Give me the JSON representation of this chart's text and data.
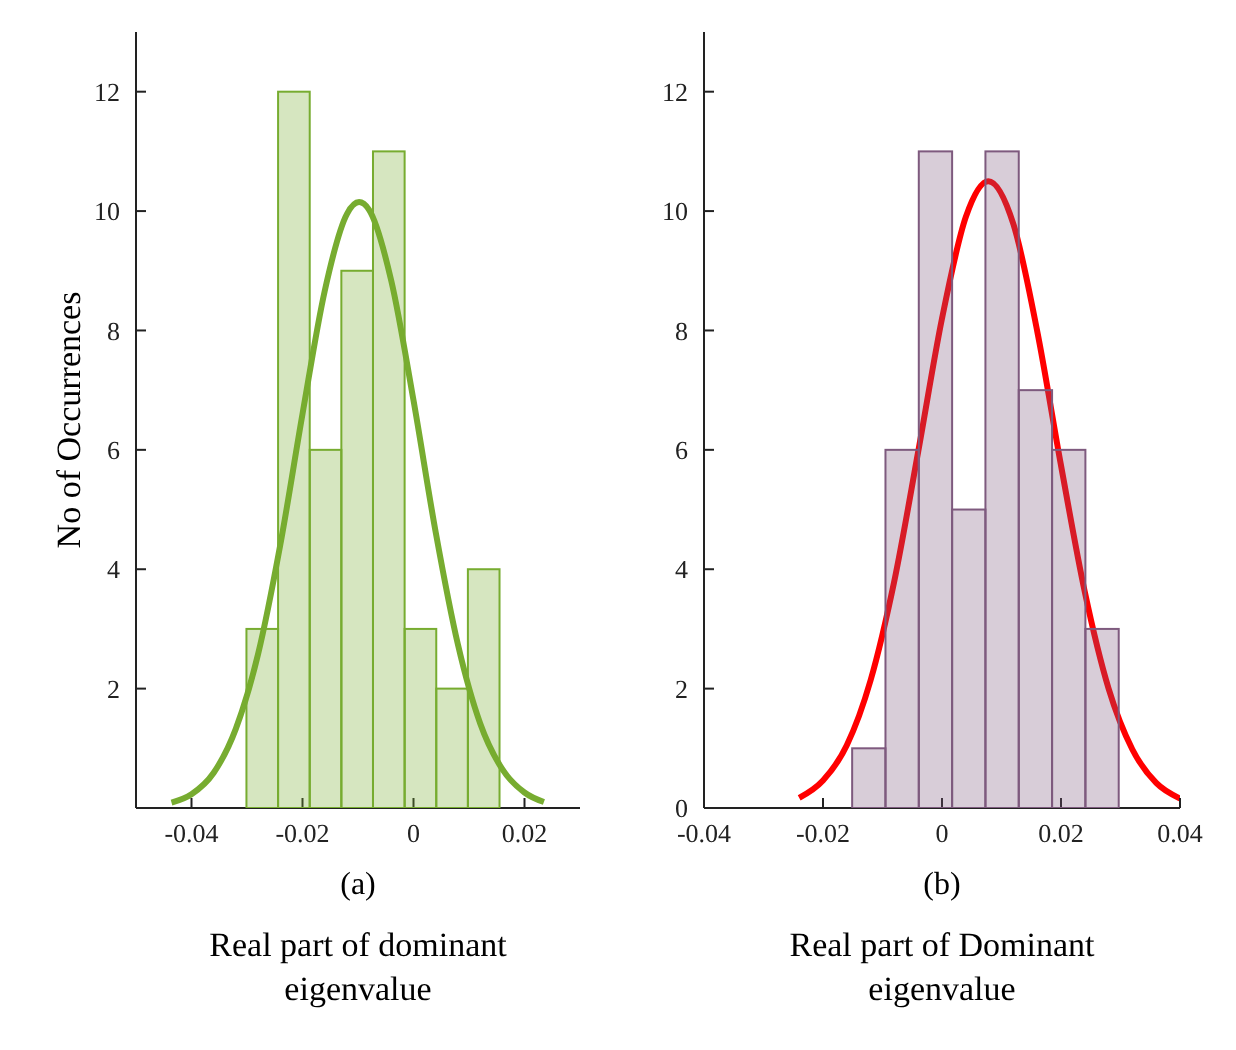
{
  "chart_data": [
    {
      "type": "histogram",
      "title": "(a)",
      "xlabel": "Real part of dominant eigenvalue",
      "ylabel": "No of Occurrences",
      "bins": [
        -0.0301,
        -0.0244,
        -0.0187,
        -0.013,
        -0.0073,
        -0.0016,
        0.0041,
        0.0098,
        0.0155
      ],
      "values": [
        3,
        12,
        6,
        9,
        11,
        3,
        2,
        4
      ],
      "color": "#77ac30",
      "xlim": [
        -0.05,
        0.03
      ],
      "xticks": [
        -0.04,
        -0.02,
        0,
        0.02
      ],
      "ylim": [
        0,
        13
      ],
      "yticks": [
        2,
        4,
        6,
        8,
        10,
        12
      ],
      "grid": false,
      "series": [
        {
          "type": "line",
          "color": "#77ac30",
          "x": [
            -0.0436,
            -0.04,
            -0.036,
            -0.032,
            -0.028,
            -0.024,
            -0.02,
            -0.016,
            -0.012,
            -0.0098,
            -0.008,
            -0.004,
            0,
            0.004,
            0.008,
            0.012,
            0.016,
            0.02,
            0.0235
          ],
          "values": [
            0.09,
            0.23,
            0.59,
            1.33,
            2.58,
            4.41,
            6.6,
            8.66,
            9.95,
            10.15,
            10.02,
            8.83,
            6.83,
            4.62,
            2.74,
            1.42,
            0.65,
            0.26,
            0.1
          ]
        }
      ]
    },
    {
      "type": "histogram",
      "title": "(b)",
      "xlabel": "Real part of Dominant eigenvalue",
      "bins": [
        -0.0151,
        -0.0095,
        -0.0039,
        0.0017,
        0.0073,
        0.0129,
        0.0185,
        0.0241,
        0.0297
      ],
      "values": [
        1,
        6,
        11,
        5,
        11,
        7,
        6,
        3
      ],
      "color": "#7e5a7e",
      "xlim": [
        -0.04,
        0.04
      ],
      "xticks": [
        -0.04,
        -0.02,
        0,
        0.02,
        0.04
      ],
      "ylim": [
        0,
        13
      ],
      "yticks": [
        0,
        2,
        4,
        6,
        8,
        10,
        12
      ],
      "grid": false,
      "series": [
        {
          "type": "line",
          "color": "#ff0000",
          "x": [
            -0.024,
            -0.02,
            -0.016,
            -0.012,
            -0.008,
            -0.004,
            0,
            0.004,
            0.0078,
            0.012,
            0.016,
            0.02,
            0.024,
            0.028,
            0.032,
            0.036,
            0.04
          ],
          "values": [
            0.17,
            0.46,
            1.05,
            2.14,
            3.81,
            5.97,
            8.2,
            9.9,
            10.5,
            9.78,
            7.99,
            5.74,
            3.62,
            2.0,
            0.98,
            0.42,
            0.16
          ]
        }
      ]
    }
  ]
}
